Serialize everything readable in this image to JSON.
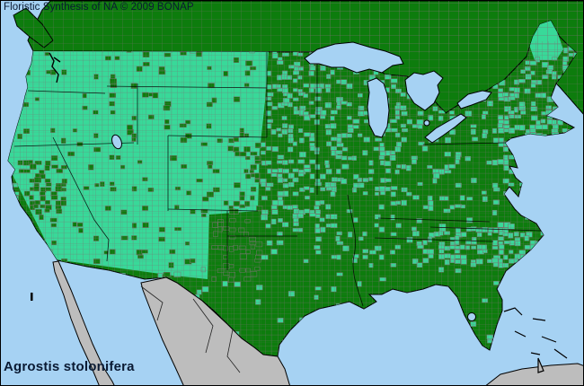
{
  "header": {
    "title": "Floristic Synthesis of NA © 2009 BONAP"
  },
  "footer": {
    "species": "Agrostis stolonifera"
  },
  "map": {
    "colors": {
      "water": "#a6d2f3",
      "state_presence_dark_green": "#0d7c0d",
      "county_presence_light_green": "#38d999",
      "no_data_land_gray": "#bdbdbd",
      "county_line_gray": "#7a7272",
      "political_boundary_black": "#000000",
      "text_navy": "#0a1a33"
    },
    "speckle_regions": [
      {
        "name": "california-central-valley",
        "speckle": "dark",
        "density": 0.5
      },
      {
        "name": "maine-interior",
        "speckle": "dark",
        "density": 0.12
      },
      {
        "name": "nc-coastal-band",
        "speckle": "light",
        "density": 0.5
      },
      {
        "name": "new-england",
        "speckle": "light",
        "density": 0.45
      },
      {
        "name": "colorado-east",
        "speckle": "dark",
        "density": 0.3
      },
      {
        "name": "new-mexico-east",
        "speckle": "dark",
        "density": 0.35
      },
      {
        "name": "northern-plains",
        "speckle": "light",
        "density": 0.4
      },
      {
        "name": "upper-midwest",
        "speckle": "light",
        "density": 0.32
      },
      {
        "name": "deep-south",
        "speckle": "light",
        "density": 0.05
      },
      {
        "name": "west-block",
        "speckle": "dark",
        "density": 0.07
      },
      {
        "name": "east-default",
        "speckle": "light",
        "density": 0.17
      }
    ]
  }
}
